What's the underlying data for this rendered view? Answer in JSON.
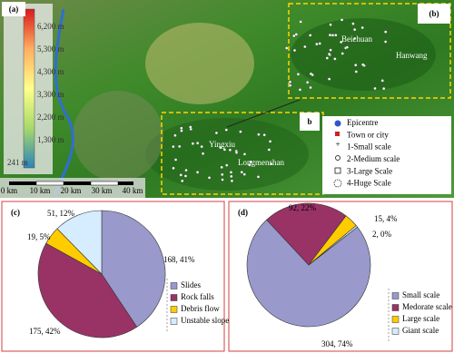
{
  "map": {
    "panel_labels": [
      "(a)",
      "(b)",
      "b"
    ],
    "elevation_labels": [
      "6,200 m",
      "5,300 m",
      "4,300 m",
      "3,300 m",
      "2,200 m",
      "1,300 m",
      "241 m"
    ],
    "scale_labels": [
      "0 km",
      "10 km",
      "20 km",
      "30 km",
      "40 km"
    ],
    "place_labels": [
      "Beichuan",
      "Yingxiu",
      "Hanwang",
      "Longmenshan"
    ],
    "legend": [
      "Epicentre",
      "Town or city",
      "1-Small scale",
      "2-Medium scale",
      "3-Large Scale",
      "4-Huge Scale"
    ]
  },
  "chart_data": [
    {
      "type": "pie",
      "title": "(c)",
      "categories": [
        "Slides",
        "Rock falls",
        "Debris flow",
        "Unstable slope"
      ],
      "values": [
        168,
        175,
        19,
        51
      ],
      "value_labels": [
        "168, 41%",
        "175, 42%",
        "19, 5%",
        "51, 12%"
      ],
      "colors": [
        "#9999cc",
        "#993366",
        "#ffcc00",
        "#d6ecff"
      ]
    },
    {
      "type": "pie",
      "title": "(d)",
      "categories": [
        "Small scale",
        "Medorate scale",
        "Large scale",
        "Giant scale"
      ],
      "values": [
        304,
        92,
        15,
        2
      ],
      "value_labels": [
        "304, 74%",
        "92, 22%",
        "15, 4%",
        "2, 0%"
      ],
      "colors": [
        "#9999cc",
        "#993366",
        "#ffcc00",
        "#d6ecff"
      ]
    }
  ]
}
